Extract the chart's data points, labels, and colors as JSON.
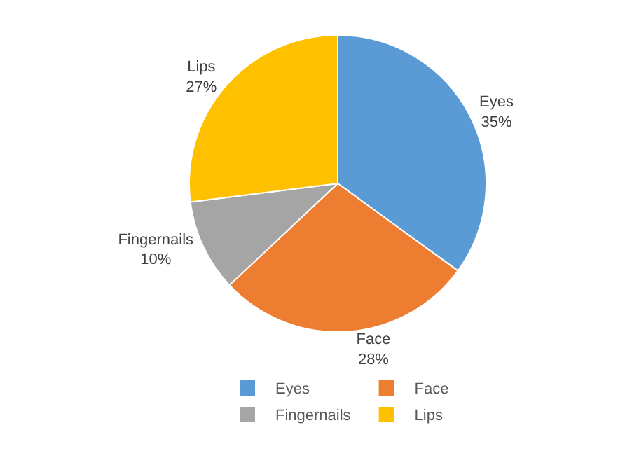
{
  "chart_data": {
    "type": "pie",
    "categories": [
      "Eyes",
      "Face",
      "Fingernails",
      "Lips"
    ],
    "values": [
      35,
      28,
      10,
      27
    ],
    "value_labels": [
      "35%",
      "28%",
      "10%",
      "27%"
    ],
    "colors": [
      "#5b9bd5",
      "#ed7d31",
      "#a5a5a5",
      "#ffc000"
    ],
    "legend": "bottom"
  }
}
